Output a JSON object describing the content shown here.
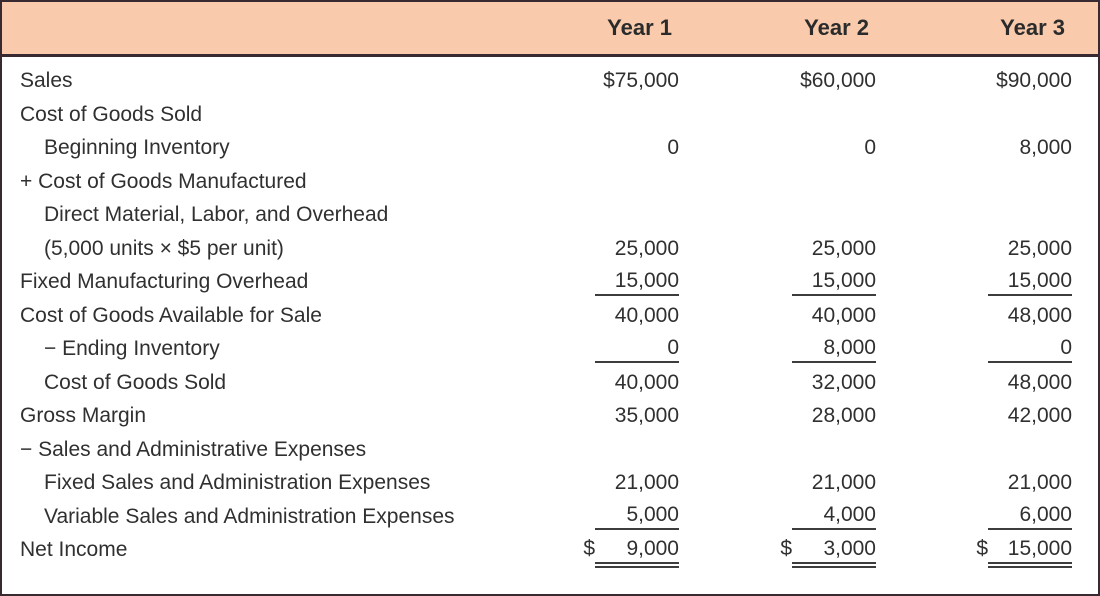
{
  "table": {
    "columns": [
      "",
      "Year 1",
      "Year 2",
      "Year 3"
    ],
    "rows": [
      {
        "label": "Sales",
        "indent": 0,
        "rule": "none",
        "values": [
          "$75,000",
          "$60,000",
          "$90,000"
        ]
      },
      {
        "label": "Cost of Goods Sold",
        "indent": 0,
        "rule": "none",
        "values": [
          "",
          "",
          ""
        ]
      },
      {
        "label": "Beginning Inventory",
        "indent": 1,
        "rule": "none",
        "values": [
          "0",
          "0",
          "8,000"
        ]
      },
      {
        "label": "+ Cost of Goods Manufactured",
        "indent": 0,
        "rule": "none",
        "values": [
          "",
          "",
          ""
        ]
      },
      {
        "label": "Direct Material, Labor, and Overhead",
        "indent": 1,
        "rule": "none",
        "values": [
          "",
          "",
          ""
        ]
      },
      {
        "label": "(5,000 units × $5 per unit)",
        "indent": 1,
        "rule": "none",
        "values": [
          "25,000",
          "25,000",
          "25,000"
        ]
      },
      {
        "label": "Fixed Manufacturing Overhead",
        "indent": 0,
        "rule": "single",
        "values": [
          "15,000",
          "15,000",
          "15,000"
        ]
      },
      {
        "label": "Cost of Goods Available for Sale",
        "indent": 0,
        "rule": "none",
        "values": [
          "40,000",
          "40,000",
          "48,000"
        ]
      },
      {
        "label": "− Ending Inventory",
        "indent": 1,
        "rule": "single",
        "values": [
          "0",
          "8,000",
          "0"
        ]
      },
      {
        "label": "Cost of Goods Sold",
        "indent": 1,
        "rule": "none",
        "values": [
          "40,000",
          "32,000",
          "48,000"
        ]
      },
      {
        "label": "Gross Margin",
        "indent": 0,
        "rule": "none",
        "values": [
          "35,000",
          "28,000",
          "42,000"
        ]
      },
      {
        "label": "− Sales and Administrative Expenses",
        "indent": 0,
        "rule": "none",
        "values": [
          "",
          "",
          ""
        ]
      },
      {
        "label": "Fixed Sales and Administration Expenses",
        "indent": 1,
        "rule": "none",
        "values": [
          "21,000",
          "21,000",
          "21,000"
        ]
      },
      {
        "label": "Variable Sales and Administration Expenses",
        "indent": 1,
        "rule": "single",
        "values": [
          "5,000",
          "4,000",
          "6,000"
        ]
      },
      {
        "label": "Net Income",
        "indent": 0,
        "rule": "double",
        "prefix": "$",
        "values": [
          "9,000",
          "3,000",
          "15,000"
        ]
      }
    ]
  },
  "colors": {
    "header_bg": "#f9cbac",
    "border": "#382a30",
    "text": "#303030",
    "rule": "#3d3d3d"
  }
}
